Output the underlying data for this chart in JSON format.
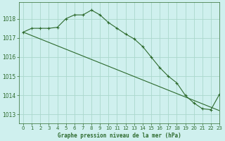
{
  "title": "Graphe pression niveau de la mer (hPa)",
  "background_color": "#cff0ee",
  "grid_color": "#aad8cc",
  "line_color": "#2d6a2d",
  "xlim": [
    -0.5,
    23
  ],
  "ylim": [
    1012.55,
    1018.85
  ],
  "yticks": [
    1013,
    1014,
    1015,
    1016,
    1017,
    1018
  ],
  "xticks": [
    0,
    1,
    2,
    3,
    4,
    5,
    6,
    7,
    8,
    9,
    10,
    11,
    12,
    13,
    14,
    15,
    16,
    17,
    18,
    19,
    20,
    21,
    22,
    23
  ],
  "series1_x": [
    0,
    1,
    2,
    3,
    4,
    5,
    6,
    7,
    8,
    9,
    10,
    11,
    12,
    13,
    14,
    15,
    16,
    17,
    18,
    19,
    20,
    21,
    22,
    23
  ],
  "series1_y": [
    1017.3,
    1017.5,
    1017.5,
    1017.5,
    1017.55,
    1018.0,
    1018.2,
    1018.2,
    1018.45,
    1018.2,
    1017.8,
    1017.5,
    1017.2,
    1016.95,
    1016.55,
    1016.0,
    1015.45,
    1015.0,
    1014.65,
    1014.0,
    1013.6,
    1013.3,
    1013.25,
    1014.05
  ],
  "series2_x": [
    0,
    23
  ],
  "series2_y": [
    1017.3,
    1013.2
  ]
}
